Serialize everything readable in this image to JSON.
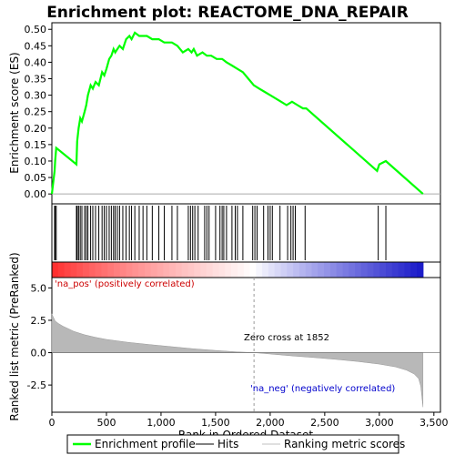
{
  "chart_data": {
    "type": "line",
    "title": "Enrichment plot: REACTOME_DNA_REPAIR",
    "xlabel": "Rank in Ordered Dataset",
    "ylabel_top": "Enrichment score (ES)",
    "ylabel_bottom": "Ranked list metric (PreRanked)",
    "xlim": [
      0,
      3560
    ],
    "x_ticks": [
      0,
      500,
      1000,
      1500,
      2000,
      2500,
      3000,
      3500
    ],
    "x_tick_labels": [
      "0",
      "500",
      "1,000",
      "1,500",
      "2,000",
      "2,500",
      "3,000",
      "3,500"
    ],
    "es_ylim": [
      -0.03,
      0.52
    ],
    "es_ticks": [
      0.0,
      0.05,
      0.1,
      0.15,
      0.2,
      0.25,
      0.3,
      0.35,
      0.4,
      0.45,
      0.5
    ],
    "es_tick_labels": [
      "0.00",
      "0.05",
      "0.10",
      "0.15",
      "0.20",
      "0.25",
      "0.30",
      "0.35",
      "0.40",
      "0.45",
      "0.50"
    ],
    "metric_ylim": [
      -4.6,
      5.8
    ],
    "metric_ticks": [
      5.0,
      2.5,
      0.0,
      -2.5
    ],
    "metric_tick_labels": [
      "5.0",
      "2.5",
      "0.0",
      "-2.5"
    ],
    "n_genes": 3400,
    "series": [
      {
        "name": "Enrichment profile",
        "color": "#00ff00",
        "x": [
          0,
          25,
          30,
          40,
          225,
          232,
          245,
          260,
          275,
          300,
          315,
          330,
          355,
          375,
          400,
          430,
          460,
          480,
          500,
          525,
          545,
          565,
          580,
          600,
          620,
          650,
          680,
          710,
          730,
          760,
          800,
          835,
          870,
          920,
          980,
          1030,
          1100,
          1150,
          1200,
          1250,
          1280,
          1300,
          1330,
          1380,
          1420,
          1460,
          1510,
          1560,
          1600,
          1650,
          1700,
          1750,
          1800,
          1850,
          1900,
          1950,
          2000,
          2050,
          2100,
          2150,
          2200,
          2250,
          2300,
          2330,
          2980,
          3000,
          3060,
          3400
        ],
        "y": [
          0.0,
          0.07,
          0.1,
          0.14,
          0.09,
          0.16,
          0.2,
          0.23,
          0.22,
          0.25,
          0.27,
          0.3,
          0.33,
          0.32,
          0.34,
          0.33,
          0.37,
          0.36,
          0.38,
          0.41,
          0.42,
          0.44,
          0.43,
          0.44,
          0.45,
          0.44,
          0.47,
          0.48,
          0.47,
          0.49,
          0.48,
          0.48,
          0.48,
          0.47,
          0.47,
          0.46,
          0.46,
          0.45,
          0.43,
          0.44,
          0.43,
          0.44,
          0.42,
          0.43,
          0.42,
          0.42,
          0.41,
          0.41,
          0.4,
          0.39,
          0.38,
          0.37,
          0.35,
          0.33,
          0.32,
          0.31,
          0.3,
          0.29,
          0.28,
          0.27,
          0.28,
          0.27,
          0.26,
          0.26,
          0.07,
          0.09,
          0.1,
          0.0
        ]
      }
    ],
    "hits": [
      25,
      30,
      40,
      225,
      232,
      245,
      260,
      275,
      300,
      315,
      330,
      355,
      375,
      400,
      430,
      460,
      480,
      500,
      525,
      545,
      565,
      580,
      600,
      620,
      650,
      680,
      710,
      730,
      760,
      800,
      835,
      870,
      920,
      980,
      1030,
      1100,
      1150,
      1250,
      1270,
      1290,
      1310,
      1340,
      1400,
      1420,
      1440,
      1500,
      1540,
      1560,
      1575,
      1600,
      1650,
      1680,
      1700,
      1750,
      1840,
      1860,
      1880,
      1940,
      1980,
      2000,
      2020,
      2090,
      2160,
      2190,
      2210,
      2230,
      2320,
      2990,
      3060
    ],
    "zero_cross": 1852,
    "zero_cross_label": "Zero cross at 1852",
    "pos_label": "'na_pos' (positively correlated)",
    "neg_label": "'na_neg' (negatively correlated)",
    "metric_curve": {
      "x": [
        0,
        10,
        30,
        60,
        100,
        150,
        200,
        300,
        400,
        500,
        700,
        900,
        1100,
        1300,
        1500,
        1700,
        1852,
        2000,
        2200,
        2400,
        2600,
        2800,
        3000,
        3150,
        3250,
        3320,
        3360,
        3380,
        3390,
        3400
      ],
      "y": [
        3.0,
        2.8,
        2.45,
        2.25,
        2.05,
        1.85,
        1.65,
        1.38,
        1.18,
        1.02,
        0.8,
        0.62,
        0.46,
        0.3,
        0.17,
        0.06,
        0.0,
        -0.1,
        -0.25,
        -0.38,
        -0.52,
        -0.68,
        -0.88,
        -1.1,
        -1.35,
        -1.65,
        -2.0,
        -2.6,
        -3.4,
        -4.2
      ]
    },
    "legend": [
      {
        "label": "Enrichment profile",
        "color": "#00ff00"
      },
      {
        "label": "Hits",
        "color": "#000000"
      },
      {
        "label": "Ranking metric scores",
        "color": "#c0c0c0"
      }
    ]
  }
}
